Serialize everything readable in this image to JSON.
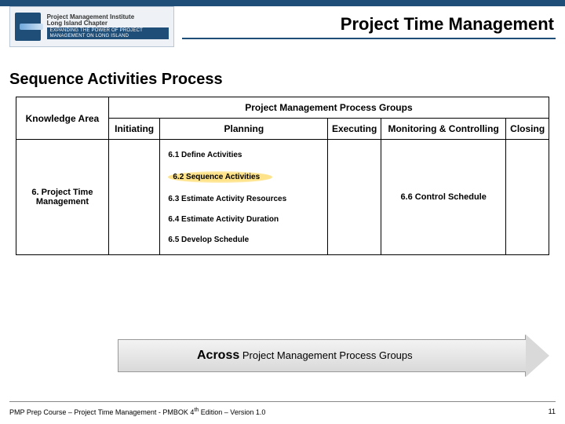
{
  "colors": {
    "header_bar": "#1f4e79",
    "rule": "#1f4e79",
    "highlight": "#ffe38a",
    "arrow_fill_top": "#f3f3f3",
    "arrow_fill_bottom": "#d9d9d9",
    "border": "#000000"
  },
  "logo": {
    "line1": "Project Management Institute",
    "line2": "Long Island Chapter",
    "tagline": "EXPANDING THE POWER OF PROJECT MANAGEMENT ON LONG ISLAND"
  },
  "page_title": "Project Time Management",
  "section_title": "Sequence Activities Process",
  "table": {
    "knowledge_area_header": "Knowledge Area",
    "process_groups_header": "Project Management Process Groups",
    "columns": {
      "initiating": "Initiating",
      "planning": "Planning",
      "executing": "Executing",
      "monitoring_controlling": "Monitoring & Controlling",
      "closing": "Closing"
    },
    "row_label": "6.  Project Time Management",
    "planning_items": [
      "6.1 Define Activities",
      "6.2 Sequence Activities",
      "6.3 Estimate Activity Resources",
      "6.4 Estimate Activity Duration",
      "6.5 Develop Schedule"
    ],
    "highlighted_index": 1,
    "monitoring_item": "6.6  Control Schedule"
  },
  "arrow": {
    "em": "Across",
    "rest": " Project Management Process Groups"
  },
  "footer": {
    "left_pre": "PMP Prep Course – Project Time Management - PMBOK 4",
    "left_sup": "th",
    "left_post": " Edition – Version 1.0",
    "page_number": "11"
  }
}
